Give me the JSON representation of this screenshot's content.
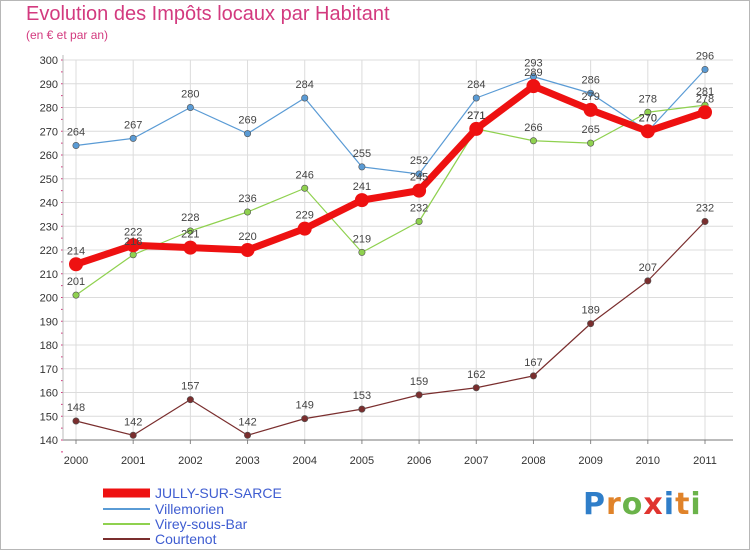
{
  "title": "Evolution des Impôts locaux par Habitant",
  "subtitle": "(en € et par an)",
  "brand": {
    "text": "Proxiti",
    "colors": [
      "#2f7ec9",
      "#e0832a",
      "#6bb34a",
      "#e0342f",
      "#2f7ec9",
      "#e0832a",
      "#6bb34a"
    ]
  },
  "chart_data": {
    "type": "line",
    "x": [
      "2000",
      "2001",
      "2002",
      "2003",
      "2004",
      "2005",
      "2006",
      "2007",
      "2008",
      "2009",
      "2010",
      "2011"
    ],
    "ylim": [
      140,
      300
    ],
    "yticks": [
      140,
      150,
      160,
      170,
      180,
      190,
      200,
      210,
      220,
      230,
      240,
      250,
      260,
      270,
      280,
      290,
      300
    ],
    "grid": true,
    "legend_position": "bottom-left",
    "series": [
      {
        "name": "Villemorien",
        "color": "#5a9bd5",
        "values": [
          264,
          267,
          280,
          269,
          284,
          255,
          252,
          284,
          293,
          286,
          270,
          296
        ]
      },
      {
        "name": "Virey-sous-Bar",
        "color": "#8fd14f",
        "values": [
          201,
          218,
          228,
          236,
          246,
          219,
          232,
          271,
          266,
          265,
          278,
          281
        ]
      },
      {
        "name": "Courtenot",
        "color": "#7a2e2e",
        "values": [
          148,
          142,
          157,
          142,
          149,
          153,
          159,
          162,
          167,
          189,
          207,
          232
        ]
      },
      {
        "name": "JULLY-SUR-SARCE",
        "color": "#ee1111",
        "values": [
          214,
          222,
          221,
          220,
          229,
          241,
          245,
          271,
          289,
          279,
          270,
          278
        ]
      }
    ],
    "legend": [
      "JULLY-SUR-SARCE",
      "Villemorien",
      "Virey-sous-Bar",
      "Courtenot"
    ]
  }
}
